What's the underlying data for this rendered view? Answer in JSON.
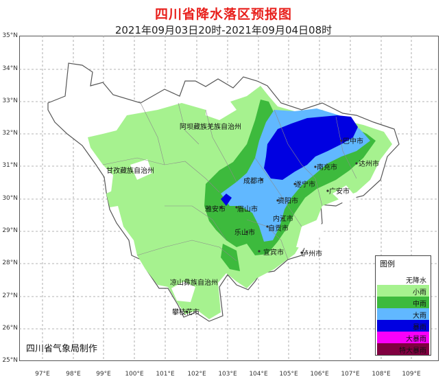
{
  "title": "四川省降水落区预报图",
  "subtitle": "2021年09月03日20时-2021年09月04日08时",
  "credit": "四川省气象局制作",
  "lat_labels": [
    "35°N",
    "34°N",
    "33°N",
    "32°N",
    "31°N",
    "30°N",
    "29°N",
    "28°N",
    "27°N",
    "26°N",
    "25°N"
  ],
  "lon_labels": [
    "97°E",
    "98°E",
    "99°E",
    "100°E",
    "101°E",
    "102°E",
    "103°E",
    "104°E",
    "105°E",
    "106°E",
    "107°E",
    "108°E",
    "109°E"
  ],
  "regions": {
    "aba": "阿坝藏族羌族自治州",
    "ganzi": "甘孜藏族自治州",
    "liangshan": "凉山彝族自治州"
  },
  "cities": {
    "bazhong": "巴中市",
    "dazhou": "达州市",
    "nanchong": "南充市",
    "chengdu": "成都市",
    "suining": "遂宁市",
    "guangan": "广安市",
    "yaan": "雅安市",
    "meishan": "眉山市",
    "ziyang": "资阳市",
    "neijiang": "内江市",
    "leshan": "乐山市",
    "zigong": "自贡市",
    "yibin": "宜宾市",
    "luzhou": "泸州市",
    "panzhihua": "攀枝花市"
  },
  "legend": {
    "title": "图例",
    "items": [
      {
        "label": "无降水",
        "color": "#ffffff"
      },
      {
        "label": "小雨",
        "color": "#a6f28f"
      },
      {
        "label": "中雨",
        "color": "#3dba3d"
      },
      {
        "label": "大雨",
        "color": "#61b8ff"
      },
      {
        "label": "暴雨",
        "color": "#0000e1"
      },
      {
        "label": "大暴雨",
        "color": "#fa00fa"
      },
      {
        "label": "特大暴雨",
        "color": "#800040"
      }
    ]
  }
}
